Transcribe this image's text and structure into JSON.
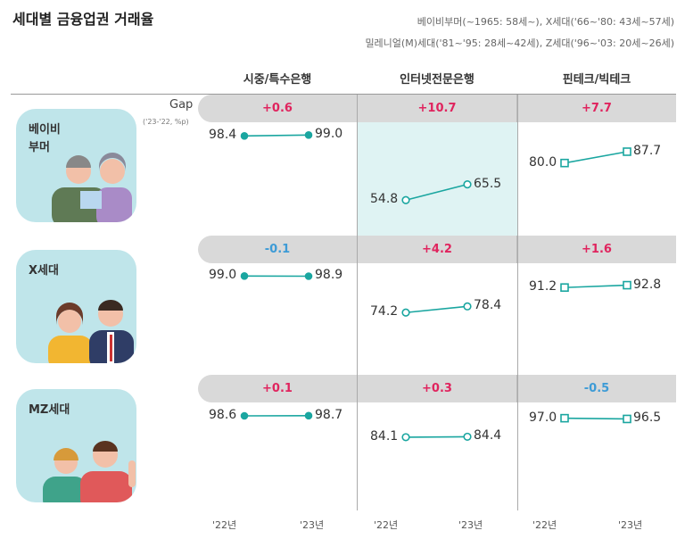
{
  "title": "세대별 금융업권 거래율",
  "notes": [
    "베이비부머(~1965: 58세~), X세대('66~'80: 43세~57세)",
    "밀레니얼(M)세대('81~'95: 28세~42세), Z세대('96~'03: 20세~26세)"
  ],
  "gap_label": "Gap",
  "gap_unit": "('23-'22, %p)",
  "colors": {
    "positive": "#e0245e",
    "negative": "#3d9bd6",
    "line": "#1aa6a0",
    "highlight": "#dff3f3",
    "card": "#bfe5ea"
  },
  "chart_data": {
    "type": "line",
    "categories": [
      "시중/특수은행",
      "인터넷전문은행",
      "핀테크/빅테크"
    ],
    "x": [
      "'22년",
      "'23년"
    ],
    "markers": [
      "filled-circle",
      "hollow-circle",
      "hollow-square"
    ],
    "highlight": {
      "group": "베이비 부머",
      "category": "인터넷전문은행"
    },
    "groups": [
      {
        "name": "베이비 부머",
        "lines": [
          "베이비",
          "부머"
        ],
        "gaps": [
          "+0.6",
          "+10.7",
          "+7.7"
        ],
        "values": [
          [
            98.4,
            99.0
          ],
          [
            54.8,
            65.5
          ],
          [
            80.0,
            87.7
          ]
        ]
      },
      {
        "name": "X세대",
        "lines": [
          "X세대"
        ],
        "gaps": [
          "-0.1",
          "+4.2",
          "+1.6"
        ],
        "values": [
          [
            99.0,
            98.9
          ],
          [
            74.2,
            78.4
          ],
          [
            91.2,
            92.8
          ]
        ]
      },
      {
        "name": "MZ세대",
        "lines": [
          "MZ세대"
        ],
        "gaps": [
          "+0.1",
          "+0.3",
          "-0.5"
        ],
        "values": [
          [
            98.6,
            98.7
          ],
          [
            84.1,
            84.4
          ],
          [
            97.0,
            96.5
          ]
        ]
      }
    ]
  }
}
